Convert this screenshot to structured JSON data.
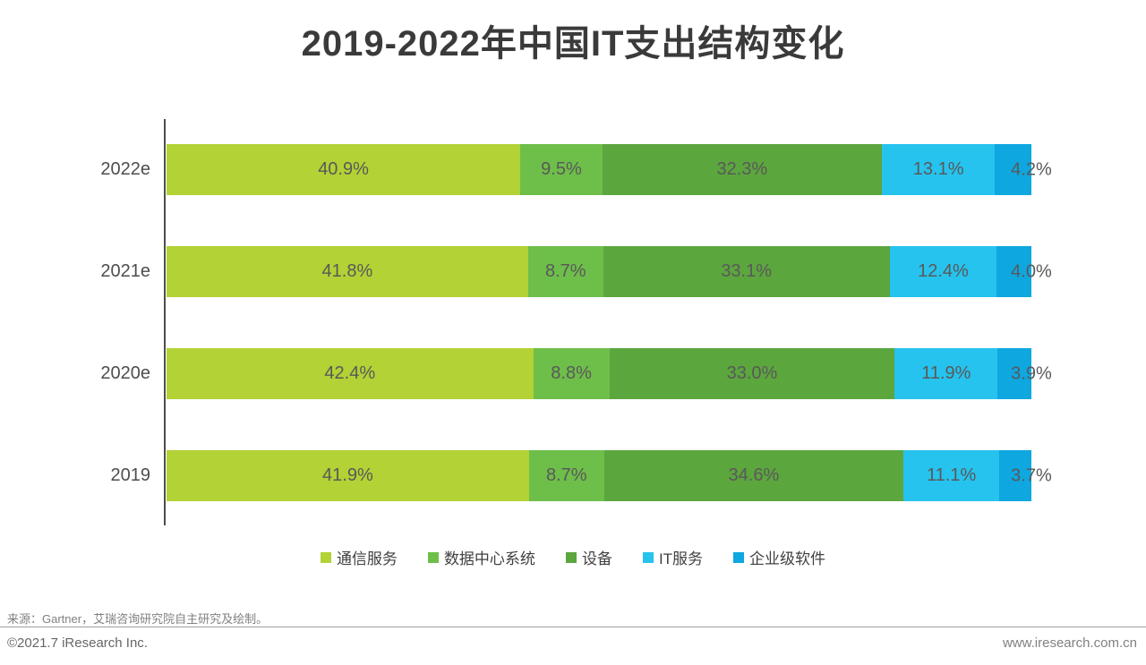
{
  "title": "2019-2022年中国IT支出结构变化",
  "chart_data": {
    "type": "bar",
    "subtype": "horizontal-stacked",
    "unit": "percent",
    "categories": [
      "2022e",
      "2021e",
      "2020e",
      "2019"
    ],
    "series": [
      {
        "name": "通信服务",
        "color": "#b2d235",
        "values": [
          40.9,
          41.8,
          42.4,
          41.9
        ]
      },
      {
        "name": "数据中心系统",
        "color": "#6ebe4a",
        "values": [
          9.5,
          8.7,
          8.8,
          8.7
        ]
      },
      {
        "name": "设备",
        "color": "#5ca63e",
        "values": [
          32.3,
          33.1,
          33.0,
          34.6
        ]
      },
      {
        "name": "IT服务",
        "color": "#26c3ee",
        "values": [
          13.1,
          12.4,
          11.9,
          11.1
        ]
      },
      {
        "name": "企业级软件",
        "color": "#0ea7e0",
        "values": [
          4.2,
          4.0,
          3.9,
          3.7
        ]
      }
    ],
    "xlim": [
      0,
      100
    ],
    "grid": false,
    "legend_position": "bottom",
    "value_labels": "inside-center"
  },
  "footer": {
    "source": "来源：Gartner，艾瑞咨询研究院自主研究及绘制。",
    "copyright": "©2021.7 iResearch Inc.",
    "website": "www.iresearch.com.cn"
  },
  "colors": {
    "title": "#3a3a3a",
    "axis": "#4d4d4d",
    "value_label": "#595959",
    "category_label": "#4d4d4d",
    "background": "#ffffff"
  },
  "layout": {
    "row_tops": [
      161,
      275,
      389,
      503
    ]
  }
}
